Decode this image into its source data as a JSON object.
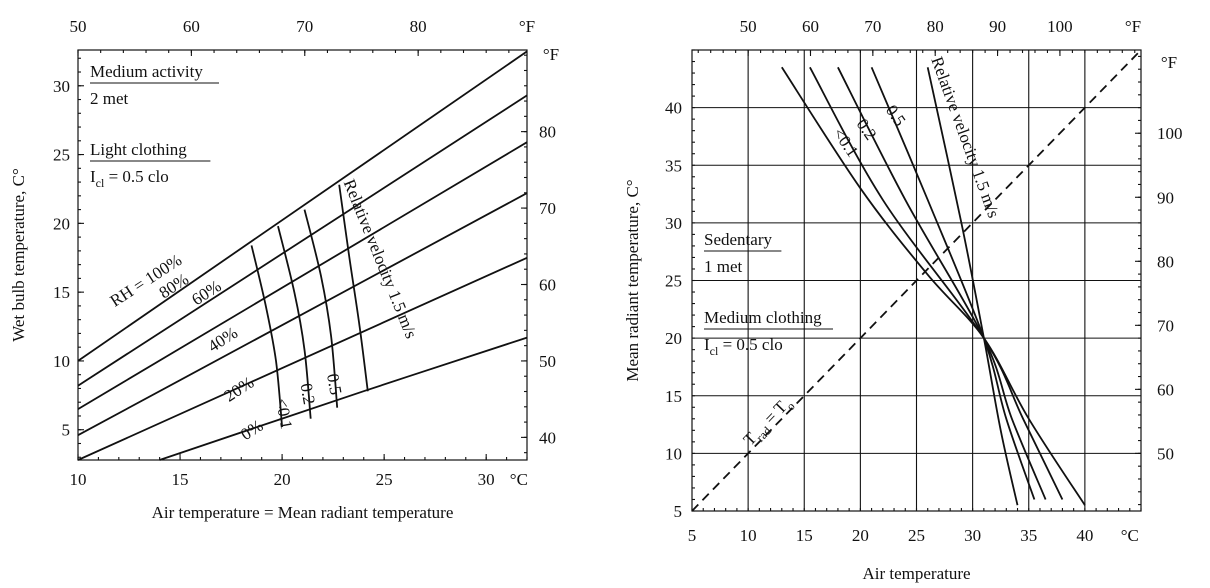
{
  "chart_data": [
    {
      "type": "line",
      "xlabel": "Air temperature = Mean radiant temperature",
      "ylabel": "Wet bulb temperature, C°",
      "xlim": [
        10,
        32
      ],
      "ylim": [
        2.8,
        32.6
      ],
      "x_ticks": [
        "10",
        "15",
        "20",
        "25",
        "30"
      ],
      "x_unit": "°C",
      "y_ticks": [
        "5",
        "10",
        "15",
        "20",
        "25",
        "30"
      ],
      "top_ticks": [
        "50",
        "60",
        "70",
        "80"
      ],
      "top_unit": "°F",
      "right_ticks": [
        "40",
        "50",
        "60",
        "70",
        "80"
      ],
      "right_unit": "°F",
      "notes": [
        {
          "line1": "Medium activity",
          "line2": "2 met"
        },
        {
          "line1": "Light clothing",
          "line2": "I",
          "sub": "cl",
          "rest": " = 0.5 clo"
        }
      ],
      "series": [
        {
          "name": "RH = 100%",
          "x": [
            10,
            32
          ],
          "y": [
            10,
            32.5
          ]
        },
        {
          "name": "80%",
          "x": [
            10,
            32
          ],
          "y": [
            8.2,
            29.3
          ]
        },
        {
          "name": "60%",
          "x": [
            10,
            32
          ],
          "y": [
            6.5,
            25.9
          ]
        },
        {
          "name": "40%",
          "x": [
            10,
            32
          ],
          "y": [
            4.6,
            22.2
          ]
        },
        {
          "name": "20%",
          "x": [
            10,
            32
          ],
          "y": [
            2.8,
            17.5
          ]
        },
        {
          "name": "0%",
          "x": [
            14,
            24,
            32
          ],
          "y": [
            2.8,
            7.8,
            11.7
          ]
        }
      ],
      "velocity_lines": [
        {
          "name": "<0.1",
          "x": [
            18.5,
            19.2,
            19.7,
            20.0
          ],
          "y": [
            18.4,
            14.0,
            10.0,
            5.2
          ]
        },
        {
          "name": "0.2",
          "x": [
            19.8,
            20.6,
            21.1,
            21.4
          ],
          "y": [
            19.8,
            15.0,
            10.8,
            5.8
          ]
        },
        {
          "name": "0.5",
          "x": [
            21.1,
            21.9,
            22.4,
            22.7
          ],
          "y": [
            21.0,
            16.2,
            11.8,
            6.6
          ]
        },
        {
          "name": "Relative velocity 1.5 m/s",
          "x": [
            22.8,
            23.3,
            23.8,
            24.2
          ],
          "y": [
            22.8,
            17.5,
            12.5,
            7.8
          ]
        }
      ]
    },
    {
      "type": "line",
      "xlabel": "Air temperature",
      "ylabel": "Mean radiant temperature, C°",
      "xlim": [
        5,
        45
      ],
      "ylim": [
        5,
        45
      ],
      "x_ticks": [
        "5",
        "10",
        "15",
        "20",
        "25",
        "30",
        "35",
        "40"
      ],
      "x_unit": "°C",
      "y_ticks": [
        "5",
        "10",
        "15",
        "20",
        "25",
        "30",
        "35",
        "40"
      ],
      "top_ticks": [
        "50",
        "60",
        "70",
        "80",
        "90",
        "100"
      ],
      "top_unit": "°F",
      "right_ticks": [
        "50",
        "60",
        "70",
        "80",
        "90",
        "100"
      ],
      "right_unit": "°F",
      "grid": true,
      "notes": [
        {
          "line1": "Sedentary",
          "line2": "1 met"
        },
        {
          "line1": "Medium clothing",
          "line2": "I",
          "sub": "cl",
          "rest": " = 0.5 clo"
        }
      ],
      "diagonal": {
        "name_main": "T",
        "name_sub": "rad",
        "name_rest": " = T",
        "name_sub2": "o",
        "x": [
          5,
          45
        ],
        "y": [
          5,
          45
        ]
      },
      "series": [
        {
          "name": "<0.1",
          "x": [
            13,
            20,
            26,
            31,
            35,
            40
          ],
          "y": [
            43.5,
            33.0,
            25.5,
            20.0,
            13.0,
            5.5
          ]
        },
        {
          "name": "0.2",
          "x": [
            15.5,
            22,
            31,
            34.5,
            38
          ],
          "y": [
            43.5,
            32.0,
            20.0,
            13.0,
            6.0
          ]
        },
        {
          "name": "0.5",
          "x": [
            18,
            24,
            31,
            33.5,
            36.5
          ],
          "y": [
            43.5,
            32.0,
            20.0,
            13.0,
            6.0
          ]
        },
        {
          "name": "",
          "x": [
            21,
            26,
            31,
            33,
            35.5
          ],
          "y": [
            43.5,
            32.0,
            20.0,
            13.0,
            6.0
          ]
        },
        {
          "name": "Relative velocity 1.5 m/s",
          "x": [
            26,
            29,
            31,
            32.5,
            34
          ],
          "y": [
            43.5,
            30.0,
            20.0,
            12.0,
            5.5
          ]
        }
      ]
    }
  ]
}
